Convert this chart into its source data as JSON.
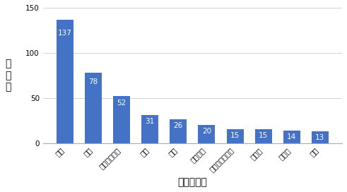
{
  "categories": [
    "米国",
    "中国",
    "シンガポール",
    "英国",
    "韓国",
    "フランス",
    "オーストラリア",
    "インド",
    "カナダ",
    "日本"
  ],
  "values": [
    137,
    78,
    52,
    31,
    26,
    20,
    15,
    15,
    14,
    13
  ],
  "bar_color": "#4472C4",
  "label_color": "#ffffff",
  "xlabel": "ランキング",
  "ylabel": "文\n献\n数",
  "ylim": [
    0,
    150
  ],
  "yticks": [
    0,
    50,
    100,
    150
  ],
  "background_color": "#ffffff",
  "label_fontsize": 7.5,
  "tick_fontsize": 7.5,
  "axis_label_fontsize": 10
}
